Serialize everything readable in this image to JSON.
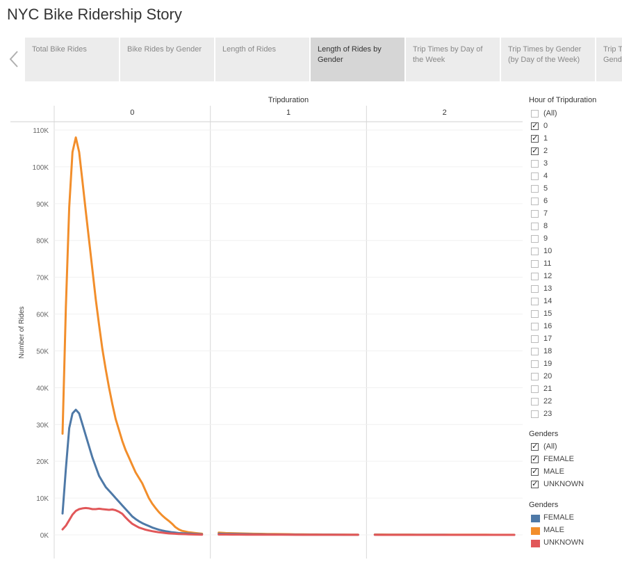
{
  "story": {
    "title": "NYC Bike Ridership Story"
  },
  "tabs": [
    {
      "label": "Total Bike Rides",
      "active": false
    },
    {
      "label": "Bike Rides by Gender",
      "active": false
    },
    {
      "label": "Length of Rides",
      "active": false
    },
    {
      "label": "Length of Rides by Gender",
      "active": true
    },
    {
      "label": "Trip Times by Day of the Week",
      "active": false
    },
    {
      "label": "Trip Times by Gender (by Day of the Week)",
      "active": false
    },
    {
      "label": "Trip Times by Customer Gender",
      "active": false
    }
  ],
  "filters": {
    "hour": {
      "title": "Hour of Tripduration",
      "items": [
        {
          "label": "(All)",
          "checked": false
        },
        {
          "label": "0",
          "checked": true
        },
        {
          "label": "1",
          "checked": true
        },
        {
          "label": "2",
          "checked": true
        },
        {
          "label": "3",
          "checked": false
        },
        {
          "label": "4",
          "checked": false
        },
        {
          "label": "5",
          "checked": false
        },
        {
          "label": "6",
          "checked": false
        },
        {
          "label": "7",
          "checked": false
        },
        {
          "label": "8",
          "checked": false
        },
        {
          "label": "9",
          "checked": false
        },
        {
          "label": "10",
          "checked": false
        },
        {
          "label": "11",
          "checked": false
        },
        {
          "label": "12",
          "checked": false
        },
        {
          "label": "13",
          "checked": false
        },
        {
          "label": "14",
          "checked": false
        },
        {
          "label": "15",
          "checked": false
        },
        {
          "label": "16",
          "checked": false
        },
        {
          "label": "17",
          "checked": false
        },
        {
          "label": "18",
          "checked": false
        },
        {
          "label": "19",
          "checked": false
        },
        {
          "label": "20",
          "checked": false
        },
        {
          "label": "21",
          "checked": false
        },
        {
          "label": "22",
          "checked": false
        },
        {
          "label": "23",
          "checked": false
        }
      ]
    },
    "gender": {
      "title": "Genders",
      "items": [
        {
          "label": "(All)",
          "checked": true
        },
        {
          "label": "FEMALE",
          "checked": true
        },
        {
          "label": "MALE",
          "checked": true
        },
        {
          "label": "UNKNOWN",
          "checked": true
        }
      ]
    }
  },
  "legend": {
    "title": "Genders",
    "items": [
      {
        "label": "FEMALE",
        "color": "#4e79a7"
      },
      {
        "label": "MALE",
        "color": "#f28e2b"
      },
      {
        "label": "UNKNOWN",
        "color": "#e15759"
      }
    ]
  },
  "chart_data": {
    "type": "line",
    "title": "",
    "xlabel": "",
    "ylabel": "Number of Rides",
    "column_header": "Tripduration",
    "panels": [
      "0",
      "1",
      "2"
    ],
    "ylim": [
      0,
      110000
    ],
    "yticks": [
      "0K",
      "10K",
      "20K",
      "30K",
      "40K",
      "50K",
      "60K",
      "70K",
      "80K",
      "90K",
      "100K",
      "110K"
    ],
    "grid": true,
    "legend": "right",
    "series": [
      {
        "name": "MALE",
        "color": "#f28e2b",
        "panels": [
          [
            27500,
            62000,
            89000,
            104000,
            108000,
            104000,
            96000,
            88000,
            80000,
            72000,
            64000,
            57000,
            50500,
            45000,
            40000,
            35500,
            31500,
            28500,
            25500,
            23000,
            21000,
            19000,
            17000,
            15500,
            14000,
            12000,
            10000,
            8500,
            7300,
            6200,
            5300,
            4500,
            3800,
            3000,
            2100,
            1500,
            1100,
            900,
            700,
            600,
            500,
            400,
            300
          ],
          [
            600,
            500,
            450,
            400,
            350,
            300,
            280,
            250,
            230,
            200,
            180,
            160,
            140,
            120,
            110,
            100,
            90,
            80,
            70,
            60,
            50
          ],
          [
            100,
            90,
            85,
            80,
            75,
            70,
            65,
            60,
            55,
            50,
            45,
            42,
            40,
            38,
            35,
            32,
            30,
            28,
            25,
            22,
            20
          ]
        ]
      },
      {
        "name": "FEMALE",
        "color": "#4e79a7",
        "panels": [
          [
            5800,
            18000,
            29000,
            33000,
            34000,
            33000,
            30000,
            27000,
            24000,
            21000,
            18500,
            16000,
            14500,
            13000,
            12000,
            11000,
            10000,
            9000,
            8000,
            7000,
            6000,
            5000,
            4300,
            3700,
            3200,
            2800,
            2400,
            2000,
            1700,
            1400,
            1200,
            1000,
            850,
            700,
            600,
            500,
            450,
            400,
            350,
            300,
            250,
            200,
            150
          ],
          [
            300,
            250,
            220,
            200,
            180,
            160,
            140,
            120,
            100,
            90,
            80,
            70,
            60,
            50,
            45,
            40,
            35,
            30,
            25,
            20,
            15
          ],
          [
            30,
            28,
            26,
            24,
            22,
            20,
            18,
            16,
            14,
            12,
            10,
            9,
            8,
            7,
            6,
            5,
            4,
            3,
            2,
            1,
            1
          ]
        ]
      },
      {
        "name": "UNKNOWN",
        "color": "#e15759",
        "panels": [
          [
            1500,
            2500,
            4000,
            5500,
            6500,
            7000,
            7200,
            7300,
            7200,
            7000,
            7000,
            7100,
            7000,
            6900,
            6800,
            6900,
            6700,
            6300,
            5700,
            4700,
            3800,
            3000,
            2500,
            2000,
            1700,
            1400,
            1200,
            1000,
            850,
            700,
            600,
            500,
            400,
            350,
            300,
            250,
            200,
            180,
            150,
            120,
            100,
            80,
            60
          ],
          [
            100,
            90,
            80,
            70,
            60,
            55,
            50,
            45,
            40,
            35,
            30,
            28,
            26,
            24,
            22,
            20,
            18,
            16,
            14,
            12,
            10
          ],
          [
            10,
            9,
            9,
            8,
            8,
            7,
            7,
            6,
            6,
            5,
            5,
            5,
            4,
            4,
            4,
            3,
            3,
            3,
            2,
            2,
            2
          ]
        ]
      }
    ]
  }
}
